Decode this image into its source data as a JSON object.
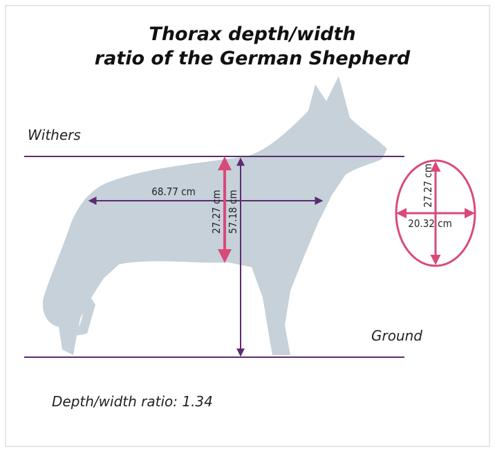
{
  "title_lines": [
    "Thorax depth/width",
    "ratio of the German Shepherd"
  ],
  "reference_lines": {
    "top": "Withers",
    "bottom": "Ground"
  },
  "measurements": {
    "body_length": "68.77 cm",
    "thorax_depth": "27.27 cm",
    "withers_height": "57.18 cm"
  },
  "cross_section": {
    "depth": "27.27 cm",
    "width": "20.32 cm"
  },
  "ratio_text": "Depth/width ratio: 1.34"
}
